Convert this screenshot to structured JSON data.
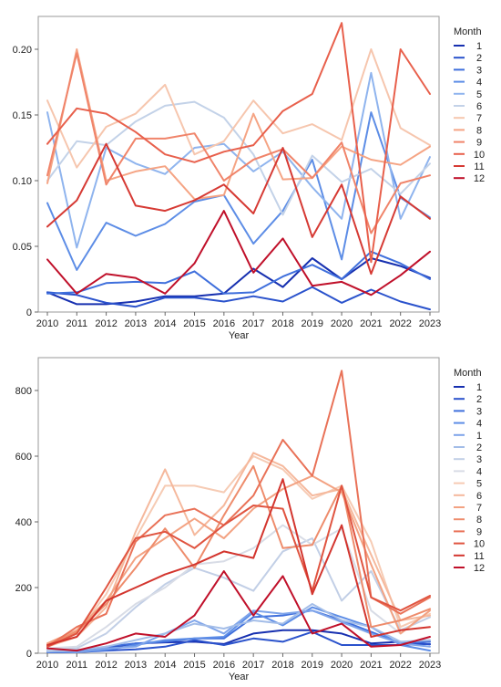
{
  "chart_data": [
    {
      "type": "line",
      "title": "",
      "xlabel": "Year",
      "ylabel": "",
      "x": [
        2010,
        2011,
        2012,
        2013,
        2014,
        2015,
        2016,
        2017,
        2018,
        2019,
        2020,
        2021,
        2022,
        2023
      ],
      "ylim": [
        0,
        0.225
      ],
      "yticks": [
        0,
        0.05,
        0.1,
        0.15,
        0.2
      ],
      "ytick_labels": [
        "0",
        "0.05",
        "0.10",
        "0.15",
        "0.20"
      ],
      "grid": false,
      "legend": {
        "title": "Month",
        "placement": "right"
      },
      "series": [
        {
          "name": "1",
          "color": "#1730b0",
          "values": [
            0.015,
            0.006,
            0.006,
            0.008,
            0.012,
            0.012,
            0.014,
            0.033,
            0.019,
            0.041,
            0.025,
            0.041,
            0.035,
            0.026
          ]
        },
        {
          "name": "2",
          "color": "#2a52cc",
          "values": [
            0.015,
            0.013,
            0.007,
            0.004,
            0.011,
            0.011,
            0.008,
            0.012,
            0.008,
            0.019,
            0.007,
            0.017,
            0.008,
            0.002
          ]
        },
        {
          "name": "3",
          "color": "#3f6fdc",
          "values": [
            0.014,
            0.015,
            0.022,
            0.023,
            0.022,
            0.031,
            0.014,
            0.015,
            0.027,
            0.036,
            0.025,
            0.046,
            0.037,
            0.025
          ]
        },
        {
          "name": "4",
          "color": "#5d8de6",
          "values": [
            0.083,
            0.032,
            0.068,
            0.058,
            0.067,
            0.084,
            0.089,
            0.052,
            0.077,
            0.116,
            0.04,
            0.152,
            0.087,
            0.072
          ]
        },
        {
          "name": "5",
          "color": "#8fb4ee",
          "values": [
            0.152,
            0.049,
            0.125,
            0.113,
            0.105,
            0.125,
            0.128,
            0.107,
            0.122,
            0.095,
            0.071,
            0.182,
            0.071,
            0.118
          ]
        },
        {
          "name": "6",
          "color": "#c3d2e8",
          "values": [
            0.1,
            0.13,
            0.127,
            0.145,
            0.157,
            0.16,
            0.148,
            0.12,
            0.074,
            0.119,
            0.099,
            0.109,
            0.09,
            0.113
          ]
        },
        {
          "name": "7",
          "color": "#f6c6ae",
          "values": [
            0.161,
            0.11,
            0.141,
            0.151,
            0.173,
            0.12,
            0.13,
            0.161,
            0.136,
            0.143,
            0.131,
            0.2,
            0.14,
            0.127
          ]
        },
        {
          "name": "8",
          "color": "#f5a484",
          "values": [
            0.098,
            0.2,
            0.1,
            0.107,
            0.111,
            0.086,
            0.089,
            0.151,
            0.101,
            0.102,
            0.126,
            0.116,
            0.112,
            0.126
          ]
        },
        {
          "name": "9",
          "color": "#f0846a",
          "values": [
            0.104,
            0.197,
            0.097,
            0.132,
            0.132,
            0.136,
            0.1,
            0.116,
            0.124,
            0.102,
            0.129,
            0.06,
            0.098,
            0.104
          ]
        },
        {
          "name": "10",
          "color": "#e8604c",
          "values": [
            0.128,
            0.155,
            0.151,
            0.137,
            0.12,
            0.114,
            0.122,
            0.127,
            0.153,
            0.166,
            0.22,
            0.038,
            0.2,
            0.166
          ]
        },
        {
          "name": "11",
          "color": "#d63a34",
          "values": [
            0.065,
            0.085,
            0.128,
            0.081,
            0.077,
            0.085,
            0.097,
            0.075,
            0.125,
            0.057,
            0.097,
            0.029,
            0.088,
            0.071
          ]
        },
        {
          "name": "12",
          "color": "#c0102a",
          "values": [
            0.04,
            0.014,
            0.029,
            0.026,
            0.014,
            0.037,
            0.077,
            0.03,
            0.056,
            0.02,
            0.023,
            0.013,
            0.028,
            0.046
          ]
        }
      ]
    },
    {
      "type": "line",
      "title": "",
      "xlabel": "Year",
      "ylabel": "",
      "x": [
        2010,
        2011,
        2012,
        2013,
        2014,
        2015,
        2016,
        2017,
        2018,
        2019,
        2020,
        2021,
        2022,
        2023
      ],
      "ylim": [
        0,
        900
      ],
      "yticks": [
        0,
        200,
        400,
        600,
        800
      ],
      "ytick_labels": [
        "0",
        "200",
        "400",
        "600",
        "800"
      ],
      "grid": false,
      "legend": {
        "title": "Month",
        "placement": "right"
      },
      "series": [
        {
          "name": "1",
          "color": "#1730b0",
          "values": [
            5,
            3,
            15,
            30,
            33,
            35,
            28,
            60,
            70,
            70,
            60,
            30,
            35,
            27
          ]
        },
        {
          "name": "2",
          "color": "#2a52cc",
          "values": [
            3,
            3,
            8,
            12,
            20,
            40,
            25,
            45,
            35,
            65,
            25,
            25,
            25,
            28
          ]
        },
        {
          "name": "3",
          "color": "#3f6fdc",
          "values": [
            3,
            5,
            20,
            30,
            35,
            45,
            45,
            110,
            115,
            130,
            100,
            65,
            30,
            35
          ]
        },
        {
          "name": "4",
          "color": "#5d8de6",
          "values": [
            5,
            3,
            10,
            25,
            40,
            45,
            50,
            125,
            85,
            140,
            110,
            80,
            25,
            8
          ]
        },
        {
          "name": "1",
          "color": "#7ea4ea",
          "values": [
            8,
            3,
            15,
            20,
            60,
            100,
            60,
            130,
            120,
            130,
            95,
            60,
            30,
            20
          ]
        },
        {
          "name": "2",
          "color": "#a3bde8",
          "values": [
            5,
            10,
            20,
            40,
            60,
            90,
            75,
            100,
            90,
            150,
            100,
            80,
            35,
            40
          ]
        },
        {
          "name": "3",
          "color": "#c2cfe6",
          "values": [
            10,
            15,
            60,
            140,
            210,
            260,
            230,
            190,
            310,
            350,
            160,
            250,
            70,
            110
          ]
        },
        {
          "name": "4",
          "color": "#d8dce6",
          "values": [
            15,
            20,
            80,
            150,
            200,
            270,
            280,
            320,
            390,
            330,
            380,
            130,
            60,
            130
          ]
        },
        {
          "name": "5",
          "color": "#f6cbb4",
          "values": [
            25,
            60,
            180,
            350,
            510,
            510,
            490,
            600,
            560,
            470,
            510,
            340,
            80,
            120
          ]
        },
        {
          "name": "6",
          "color": "#f5b89c",
          "values": [
            20,
            50,
            140,
            370,
            560,
            360,
            450,
            610,
            570,
            480,
            500,
            300,
            100,
            115
          ]
        },
        {
          "name": "7",
          "color": "#f3a282",
          "values": [
            30,
            70,
            160,
            290,
            350,
            410,
            350,
            440,
            500,
            540,
            490,
            270,
            60,
            130
          ]
        },
        {
          "name": "8",
          "color": "#ee8c6c",
          "values": [
            25,
            65,
            150,
            260,
            380,
            260,
            420,
            570,
            320,
            330,
            510,
            80,
            100,
            135
          ]
        },
        {
          "name": "9",
          "color": "#e97258",
          "values": [
            20,
            80,
            120,
            340,
            420,
            440,
            390,
            480,
            650,
            540,
            860,
            170,
            120,
            170
          ]
        },
        {
          "name": "10",
          "color": "#e05440",
          "values": [
            20,
            60,
            200,
            350,
            370,
            320,
            390,
            450,
            440,
            190,
            510,
            170,
            130,
            175
          ]
        },
        {
          "name": "11",
          "color": "#d3352e",
          "values": [
            25,
            50,
            160,
            200,
            240,
            270,
            310,
            290,
            530,
            180,
            390,
            50,
            70,
            80
          ]
        },
        {
          "name": "12",
          "color": "#c0102a",
          "values": [
            15,
            8,
            30,
            60,
            50,
            115,
            250,
            115,
            235,
            60,
            90,
            20,
            25,
            50
          ]
        }
      ]
    }
  ]
}
